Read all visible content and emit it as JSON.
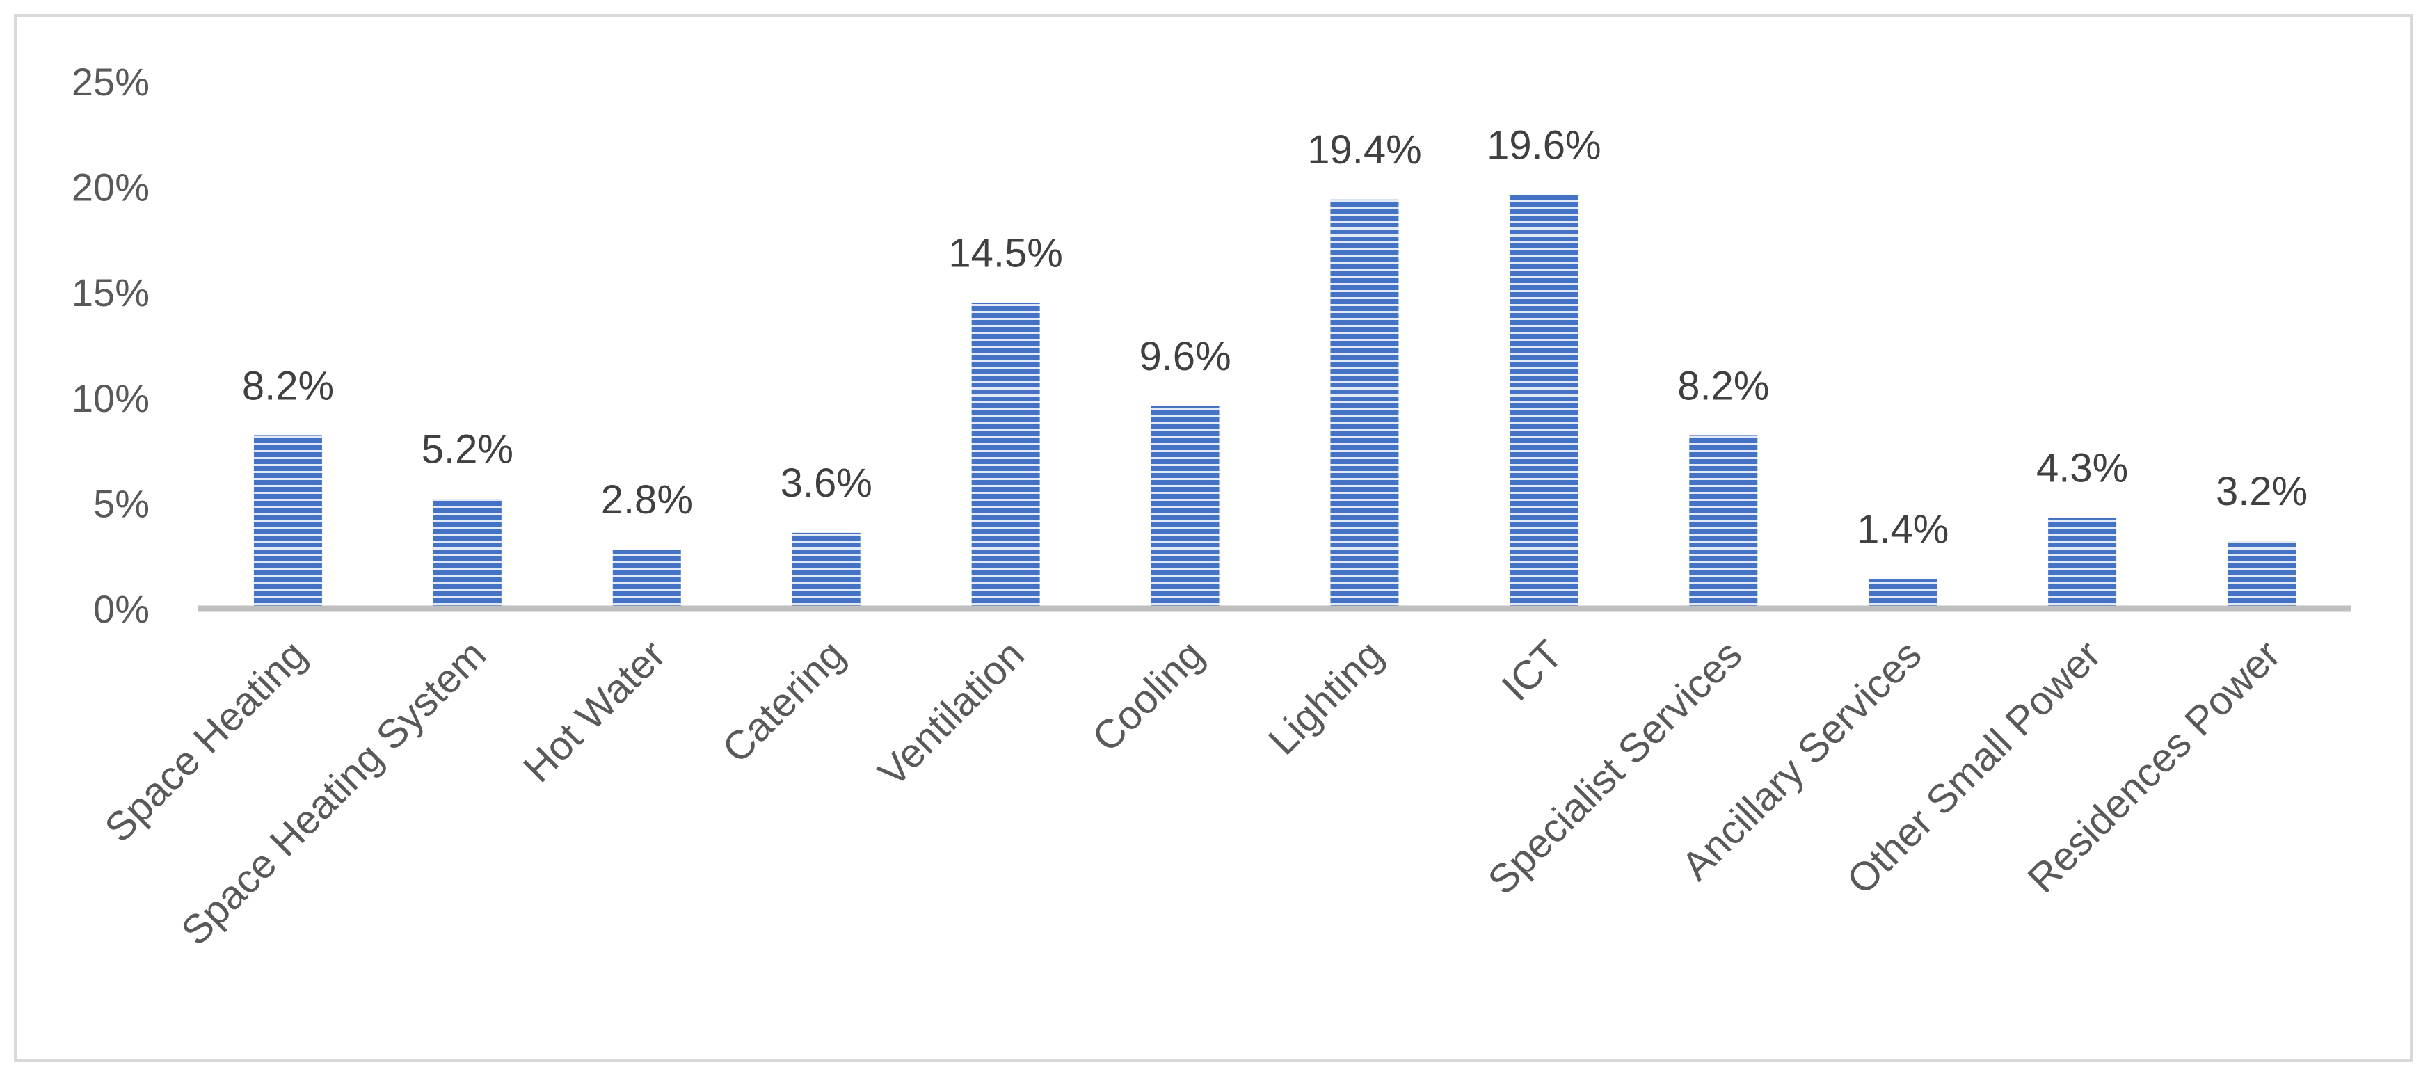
{
  "chart_data": {
    "type": "bar",
    "title": "",
    "xlabel": "",
    "ylabel": "",
    "ylim": [
      0,
      25
    ],
    "y_ticks": [
      "0%",
      "5%",
      "10%",
      "15%",
      "20%",
      "25%"
    ],
    "y_tick_values": [
      0,
      5,
      10,
      15,
      20,
      25
    ],
    "grid": false,
    "legend": "none",
    "categories": [
      "Space Heating",
      "Space Heating System",
      "Hot Water",
      "Catering",
      "Ventilation",
      "Cooling",
      "Lighting",
      "ICT",
      "Specialist Services",
      "Ancillary Services",
      "Other Small Power",
      "Residences Power"
    ],
    "values": [
      8.2,
      5.2,
      2.8,
      3.6,
      14.5,
      9.6,
      19.4,
      19.6,
      8.2,
      1.4,
      4.3,
      3.2
    ],
    "data_labels": [
      "8.2%",
      "5.2%",
      "2.8%",
      "3.6%",
      "14.5%",
      "9.6%",
      "19.4%",
      "19.6%",
      "8.2%",
      "1.4%",
      "4.3%",
      "3.2%"
    ],
    "colors": {
      "bar": "#4472c4",
      "bar_stripe": "#ffffff",
      "axis": "#bfbfbf",
      "frame": "#d9d9d9",
      "text": "#595959"
    }
  }
}
